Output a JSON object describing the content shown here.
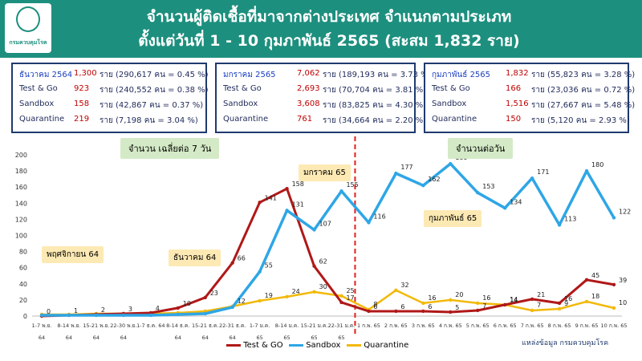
{
  "header": {
    "title_line1": "จำนวนผู้ติดเชื้อที่มาจากต่างประเทศ จำแนกตามประเภท",
    "title_line2": "ตั้งแต่วันที่  1 - 10  กุมภาพันธ์  2565 (สะสม 1,832 ราย)",
    "logo_caption": "กรมควบคุมโรค"
  },
  "boxes": [
    {
      "rows": [
        {
          "label": "ธันวาคม  2564",
          "count": "1,300",
          "unit": "ราย",
          "detail": "(290,617 คน = 0.45 %)"
        },
        {
          "label": "Test & Go",
          "count": "923",
          "unit": "ราย",
          "detail": "(240,552 คน = 0.38 %)"
        },
        {
          "label": "Sandbox",
          "count": "158",
          "unit": "ราย",
          "detail": "(42,867 คน  = 0.37 %)"
        },
        {
          "label": "Quarantine",
          "count": "219",
          "unit": "ราย",
          "detail": "(7,198 คน  = 3.04 %)"
        }
      ]
    },
    {
      "rows": [
        {
          "label": "มกราคม 2565",
          "count": "7,062",
          "unit": "ราย",
          "detail": "(189,193 คน = 3.73 %)"
        },
        {
          "label": "Test & Go",
          "count": "2,693",
          "unit": "ราย",
          "detail": "(70,704 คน = 3.81 %)"
        },
        {
          "label": "Sandbox",
          "count": "3,608",
          "unit": "ราย",
          "detail": "(83,825 คน = 4.30 %)"
        },
        {
          "label": "Quarantine",
          "count": "761",
          "unit": "ราย",
          "detail": "(34,664 คน = 2.20 %)"
        }
      ]
    },
    {
      "rows": [
        {
          "label": "กุมภาพันธ์ 2565",
          "count": "1,832",
          "unit": "ราย",
          "detail": "(55,823 คน  = 3.28 %)"
        },
        {
          "label": "Test & Go",
          "count": "166",
          "unit": "ราย",
          "detail": "(23,036 คน  = 0.72 %)"
        },
        {
          "label": "Sandbox",
          "count": "1,516",
          "unit": "ราย",
          "detail": "(27,667 คน = 5.48 %)"
        },
        {
          "label": "Quarantine",
          "count": "150",
          "unit": "ราย",
          "detail": "(5,120 คน  = 2.93 %)"
        }
      ]
    }
  ],
  "labels": {
    "weekly_avg": "จำนวน เฉลี่ยต่อ 7 วัน",
    "daily": "จำนวนต่อวัน",
    "nov": "พฤศจิกายน 64",
    "dec": "ธันวาคม 64",
    "jan": "มกราคม  65",
    "feb": "กุมภาพันธ์ 65",
    "source": "แหล่งข้อมูล  กรมควบคุมโรค"
  },
  "colors": {
    "header": "#1d8f7e",
    "testgo": "#b01818",
    "sandbox": "#2ea6e6",
    "quarantine": "#f2b90a",
    "divider": "#e02020"
  },
  "chart_data": {
    "type": "line",
    "ylim": [
      0,
      200
    ],
    "yticks": [
      0,
      20,
      40,
      60,
      80,
      100,
      120,
      140,
      160,
      180,
      200
    ],
    "x_ticks": [
      [
        "1-7 พ.ย.",
        "64"
      ],
      [
        "8-14 พ.ย.",
        "64"
      ],
      [
        "15-21 พ.ย.",
        "64"
      ],
      [
        "22-30 พ.ย.",
        "64"
      ],
      [
        "1-7 ธ.ค. 64",
        ""
      ],
      [
        "8-14 ธ.ค.",
        "64"
      ],
      [
        "15-21 ธ.ค.",
        "64"
      ],
      [
        "22-31 ธ.ค.",
        "64"
      ],
      [
        "1-7 ม.ค.",
        "65"
      ],
      [
        "8-14 ม.ค.",
        "65"
      ],
      [
        "15-21 ม.ค.",
        "65"
      ],
      [
        "22-31 ม.ค.",
        "65"
      ],
      [
        "1 ก.พ. 65",
        ""
      ],
      [
        "2 ก.พ. 65",
        ""
      ],
      [
        "3 ก.พ. 65",
        ""
      ],
      [
        "4 ก.พ. 65",
        ""
      ],
      [
        "5 ก.พ. 65",
        ""
      ],
      [
        "6 ก.พ. 65",
        ""
      ],
      [
        "7 ก.พ. 65",
        ""
      ],
      [
        "8 ก.พ. 65",
        ""
      ],
      [
        "9 ก.พ. 65",
        ""
      ],
      [
        "10 ก.พ. 65",
        ""
      ]
    ],
    "series": [
      {
        "name": "Test & GO",
        "values": [
          0,
          1,
          2,
          3,
          4,
          10,
          23,
          66,
          141,
          158,
          62,
          17,
          6,
          6,
          6,
          5,
          7,
          14,
          21,
          16,
          45,
          39
        ],
        "labels": [
          "0",
          "1",
          "2",
          "3",
          "4",
          "10",
          "23",
          "66",
          "141",
          "158",
          "62",
          "17",
          "6",
          "6",
          "6",
          "5",
          "7",
          "14",
          "21",
          "16",
          "45",
          "39"
        ]
      },
      {
        "name": "Sandbox",
        "values": [
          1,
          1,
          1,
          1,
          1,
          2,
          3,
          11,
          55,
          131,
          107,
          155,
          116,
          177,
          162,
          189,
          153,
          134,
          171,
          113,
          180,
          122
        ],
        "labels": [
          "",
          "",
          "",
          "",
          "",
          "",
          "",
          "",
          "55",
          "131",
          "107",
          "155",
          "116",
          "177",
          "162",
          "189",
          "153",
          "134",
          "171",
          "113",
          "180",
          "122"
        ]
      },
      {
        "name": "Quarantine",
        "values": [
          2,
          2,
          3,
          3,
          3,
          4,
          6,
          12,
          19,
          24,
          30,
          25,
          8,
          32,
          16,
          20,
          16,
          14,
          7,
          9,
          18,
          10
        ],
        "labels": [
          "",
          "",
          "",
          "",
          "",
          "",
          "",
          "12",
          "19",
          "24",
          "30",
          "25",
          "8",
          "32",
          "16",
          "20",
          "16",
          "14",
          "7",
          "9",
          "18",
          "10"
        ]
      }
    ]
  }
}
